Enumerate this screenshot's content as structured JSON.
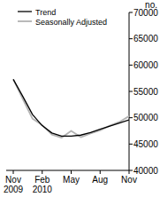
{
  "chart_data": {
    "type": "line",
    "y_label": "no.",
    "categories": [
      "Nov 2009",
      null,
      null,
      "Feb 2010",
      null,
      null,
      "May",
      null,
      null,
      "Aug",
      null,
      null,
      "Nov"
    ],
    "series": [
      {
        "name": "Trend",
        "color": "#000000",
        "values": [
          57300,
          54000,
          50600,
          48500,
          47100,
          46500,
          46500,
          46700,
          47200,
          47800,
          48400,
          49000,
          49600
        ]
      },
      {
        "name": "Seasonally Adjusted",
        "color": "#b3b3b3",
        "values": [
          57300,
          53500,
          49800,
          48600,
          46800,
          46200,
          47500,
          46300,
          47000,
          47600,
          48500,
          49200,
          50300
        ]
      }
    ],
    "ylim": [
      40000,
      70000
    ],
    "yticks": [
      40000,
      45000,
      50000,
      55000,
      60000,
      65000,
      70000
    ],
    "legend": "upper left",
    "grid": false
  }
}
